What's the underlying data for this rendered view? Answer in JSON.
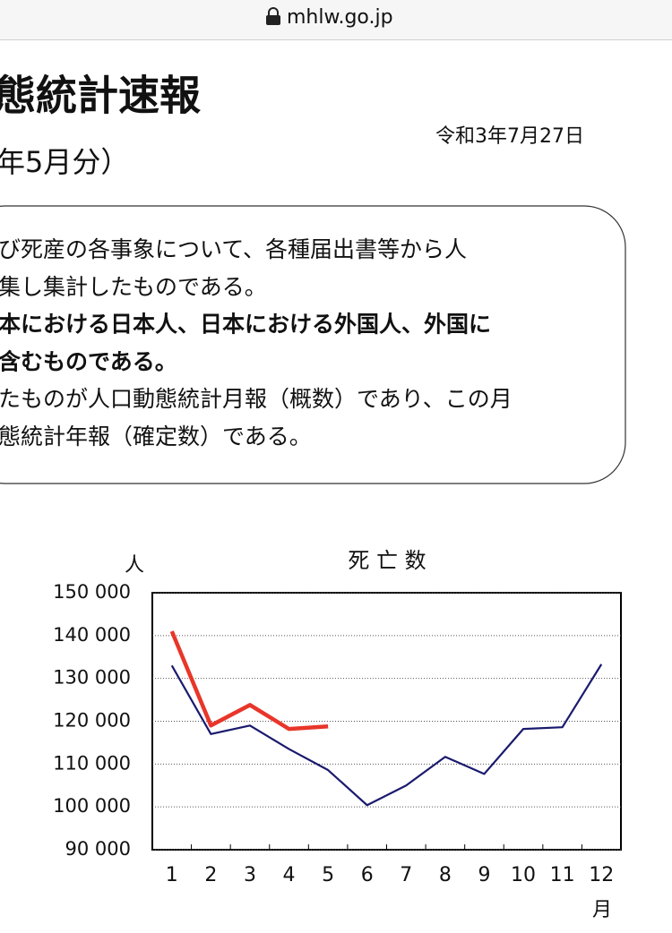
{
  "browser": {
    "url": "mhlw.go.jp"
  },
  "header": {
    "title": "態統計速報",
    "subtitle": "年5月分）",
    "date": "令和3年7月27日"
  },
  "notice": {
    "lines": [
      {
        "text": "び死産の各事象について、各種届出書等から人",
        "bold": false
      },
      {
        "text": "集し集計したものである。",
        "bold": false
      },
      {
        "text": "本における日本人、日本における外国人、外国に",
        "bold": true
      },
      {
        "text": "含むものである。",
        "bold": true
      },
      {
        "text": "たものが人口動態統計月報（概数）であり、この月",
        "bold": false
      },
      {
        "text": "態統計年報（確定数）である。",
        "bold": false
      }
    ]
  },
  "chart_data": {
    "type": "line",
    "title": "死 亡 数",
    "y_label": "人",
    "x_label": "月",
    "categories": [
      "1",
      "2",
      "3",
      "4",
      "5",
      "6",
      "7",
      "8",
      "9",
      "10",
      "11",
      "12"
    ],
    "series": [
      {
        "color": "#1a1a6e",
        "values": [
          133000,
          117000,
          119000,
          113500,
          108600,
          100400,
          105000,
          111700,
          107700,
          118200,
          118600,
          133300
        ]
      },
      {
        "color": "#e8362a",
        "values": [
          141000,
          119000,
          123800,
          118200,
          118800,
          null,
          null,
          null,
          null,
          null,
          null,
          null
        ]
      }
    ],
    "ylim": [
      90000,
      150000
    ],
    "yticks": [
      {
        "value": 90000,
        "label": "90 000"
      },
      {
        "value": 100000,
        "label": "100 000"
      },
      {
        "value": 110000,
        "label": "110 000"
      },
      {
        "value": 120000,
        "label": "120 000"
      },
      {
        "value": 130000,
        "label": "130 000"
      },
      {
        "value": 140000,
        "label": "140 000"
      },
      {
        "value": 150000,
        "label": "150 000"
      }
    ],
    "grid": true
  }
}
